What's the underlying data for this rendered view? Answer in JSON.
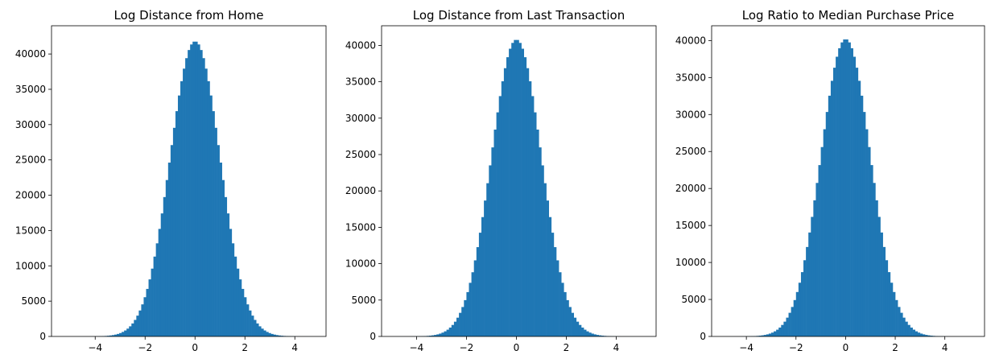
{
  "chart_data": [
    {
      "type": "bar",
      "title": "Log Distance from Home",
      "xlabel": "",
      "ylabel": "",
      "xlim": [
        -5.75,
        5.25
      ],
      "ylim": [
        0,
        44000
      ],
      "xticks": [
        -4,
        -2,
        0,
        2,
        4
      ],
      "yticks": [
        0,
        5000,
        10000,
        15000,
        20000,
        25000,
        30000,
        35000,
        40000
      ],
      "mean": 0.0,
      "sd": 1.0,
      "peak": 41800,
      "bin_min": -4.9,
      "bin_max": 4.9,
      "bins": 100,
      "color": "#1f77b4",
      "grid": false
    },
    {
      "type": "bar",
      "title": "Log Distance from Last Transaction",
      "xlabel": "",
      "ylabel": "",
      "xlim": [
        -5.4,
        5.6
      ],
      "ylim": [
        0,
        42700
      ],
      "xticks": [
        -4,
        -2,
        0,
        2,
        4
      ],
      "yticks": [
        0,
        5000,
        10000,
        15000,
        20000,
        25000,
        30000,
        35000,
        40000
      ],
      "mean": 0.0,
      "sd": 1.0,
      "peak": 40800,
      "bin_min": -4.9,
      "bin_max": 5.1,
      "bins": 100,
      "color": "#1f77b4",
      "grid": false
    },
    {
      "type": "bar",
      "title": "Log Ratio to Median Purchase Price",
      "xlabel": "",
      "ylabel": "",
      "xlim": [
        -5.4,
        5.6
      ],
      "ylim": [
        0,
        42000
      ],
      "xticks": [
        -4,
        -2,
        0,
        2,
        4
      ],
      "yticks": [
        0,
        5000,
        10000,
        15000,
        20000,
        25000,
        30000,
        35000,
        40000
      ],
      "mean": 0.0,
      "sd": 1.0,
      "peak": 40200,
      "bin_min": -4.9,
      "bin_max": 5.1,
      "bins": 100,
      "color": "#1f77b4",
      "grid": false
    }
  ]
}
